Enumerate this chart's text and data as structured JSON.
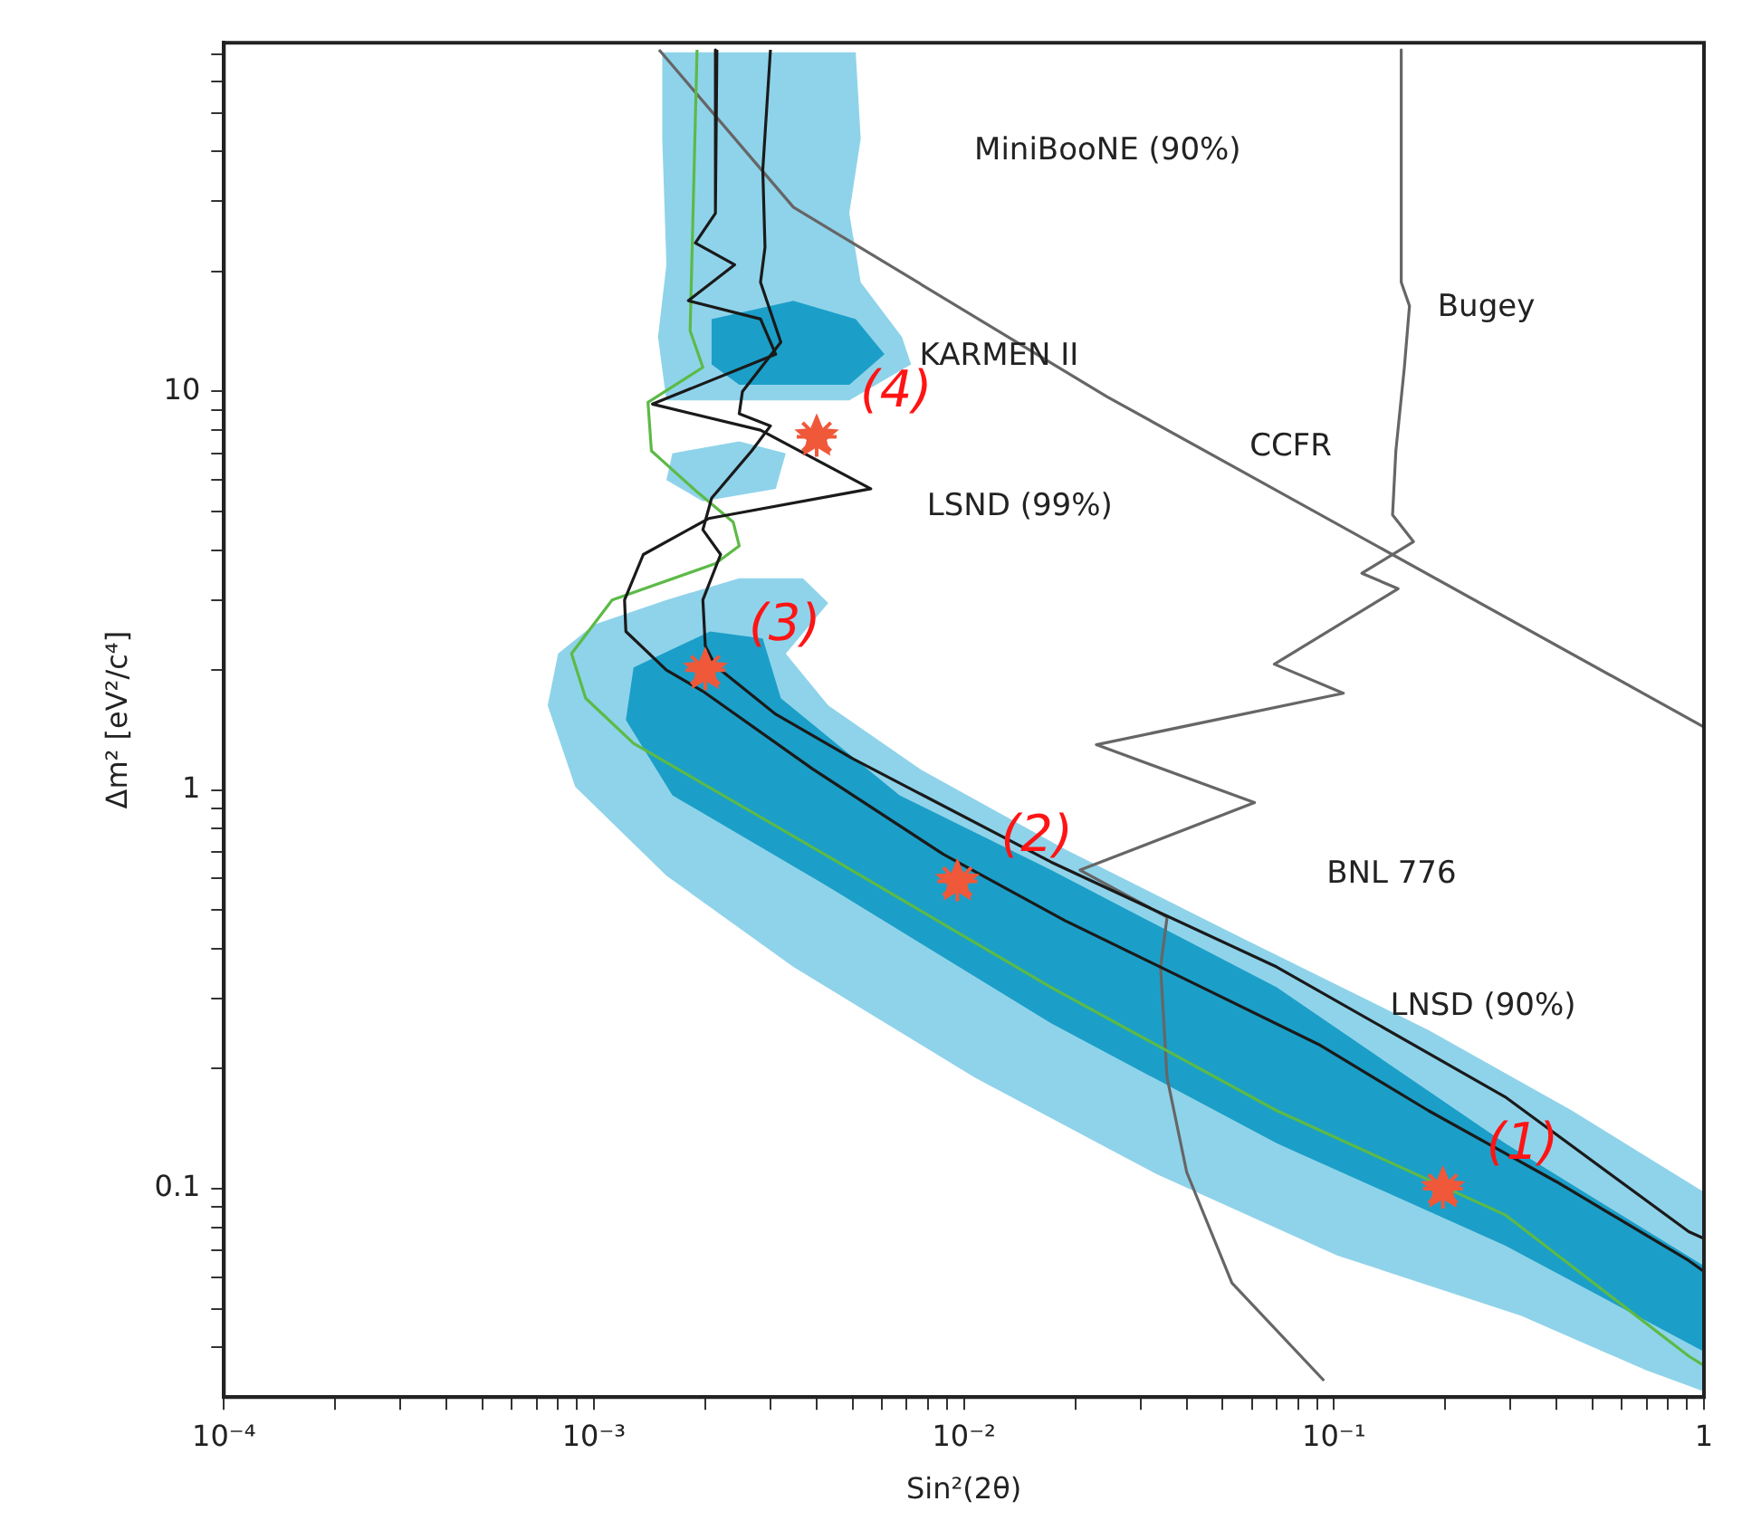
{
  "chart_data": {
    "type": "line",
    "xlabel": "Sin²(2θ)",
    "ylabel": "Δm² [eV²/c⁴]",
    "log": "xy",
    "grid": false,
    "legend": false,
    "xlim": [
      0.0001,
      1
    ],
    "ylim": [
      0.03,
      75
    ],
    "xticks": [
      {
        "value": 0.0001,
        "label": "10⁻⁴"
      },
      {
        "value": 0.0002,
        "label": null
      },
      {
        "value": 0.0003,
        "label": null
      },
      {
        "value": 0.0004,
        "label": null
      },
      {
        "value": 0.0005,
        "label": null
      },
      {
        "value": 0.0006,
        "label": null
      },
      {
        "value": 0.0007,
        "label": null
      },
      {
        "value": 0.0008,
        "label": null
      },
      {
        "value": 0.0009,
        "label": null
      },
      {
        "value": 0.001,
        "label": "10⁻³"
      },
      {
        "value": 0.002,
        "label": null
      },
      {
        "value": 0.003,
        "label": null
      },
      {
        "value": 0.004,
        "label": null
      },
      {
        "value": 0.005,
        "label": null
      },
      {
        "value": 0.006,
        "label": null
      },
      {
        "value": 0.007,
        "label": null
      },
      {
        "value": 0.008,
        "label": null
      },
      {
        "value": 0.009,
        "label": null
      },
      {
        "value": 0.01,
        "label": "10⁻²"
      },
      {
        "value": 0.02,
        "label": null
      },
      {
        "value": 0.03,
        "label": null
      },
      {
        "value": 0.04,
        "label": null
      },
      {
        "value": 0.05,
        "label": null
      },
      {
        "value": 0.06,
        "label": null
      },
      {
        "value": 0.07,
        "label": null
      },
      {
        "value": 0.08,
        "label": null
      },
      {
        "value": 0.09,
        "label": null
      },
      {
        "value": 0.1,
        "label": "10⁻¹"
      },
      {
        "value": 0.2,
        "label": null
      },
      {
        "value": 0.3,
        "label": null
      },
      {
        "value": 0.4,
        "label": null
      },
      {
        "value": 0.5,
        "label": null
      },
      {
        "value": 0.6,
        "label": null
      },
      {
        "value": 0.7,
        "label": null
      },
      {
        "value": 0.8,
        "label": null
      },
      {
        "value": 0.9,
        "label": null
      },
      1
    ],
    "yticks": [
      {
        "value": 0.04,
        "label": null
      },
      {
        "value": 0.05,
        "label": null
      },
      {
        "value": 0.06,
        "label": null
      },
      {
        "value": 0.07,
        "label": null
      },
      {
        "value": 0.08,
        "label": null
      },
      {
        "value": 0.09,
        "label": null
      },
      0.1,
      {
        "value": 0.2,
        "label": null
      },
      {
        "value": 0.3,
        "label": null
      },
      {
        "value": 0.4,
        "label": null
      },
      {
        "value": 0.5,
        "label": null
      },
      {
        "value": 0.6,
        "label": null
      },
      {
        "value": 0.7,
        "label": null
      },
      {
        "value": 0.8,
        "label": null
      },
      {
        "value": 0.9,
        "label": null
      },
      1,
      {
        "value": 2,
        "label": null
      },
      {
        "value": 3,
        "label": null
      },
      {
        "value": 4,
        "label": null
      },
      {
        "value": 5,
        "label": null
      },
      {
        "value": 6,
        "label": null
      },
      {
        "value": 7,
        "label": null
      },
      {
        "value": 8,
        "label": null
      },
      {
        "value": 9,
        "label": null
      },
      10,
      {
        "value": 20,
        "label": null
      },
      {
        "value": 30,
        "label": null
      },
      {
        "value": 40,
        "label": null
      },
      {
        "value": 50,
        "label": null
      },
      {
        "value": 60,
        "label": null
      },
      {
        "value": 70,
        "label": null
      }
    ],
    "series": [
      {
        "type": "area",
        "color": "#8fd3ea",
        "x": [
          0.00153,
          0.0051,
          0.00526,
          0.0049,
          0.00526,
          0.0068,
          0.0072,
          0.0049,
          0.00157,
          0.00149,
          0.00157,
          0.00153
        ],
        "values": [
          71,
          71,
          43,
          28,
          18.8,
          13.7,
          11.7,
          9.5,
          9.5,
          13.7,
          20.8,
          43
        ]
      },
      {
        "type": "area",
        "color": "#8fd3ea",
        "x": [
          0.00163,
          0.00247,
          0.0033,
          0.0031,
          0.00197,
          0.00157
        ],
        "values": [
          7.0,
          7.5,
          7.0,
          5.7,
          5.3,
          6.0
        ]
      },
      {
        "type": "area",
        "color": "#8fd3ea",
        "x": [
          0.00247,
          0.00367,
          0.0043,
          0.0033,
          0.0043,
          0.0076,
          0.0188,
          0.058,
          0.18,
          0.44,
          1,
          1,
          0.7,
          0.32,
          0.102,
          0.033,
          0.0107,
          0.00346,
          0.00157,
          0.00089,
          0.00075,
          0.0008,
          0.001,
          0.00157
        ],
        "values": [
          3.4,
          3.4,
          2.95,
          2.2,
          1.63,
          1.13,
          0.71,
          0.42,
          0.25,
          0.157,
          0.098,
          0.031,
          0.035,
          0.048,
          0.068,
          0.109,
          0.19,
          0.36,
          0.61,
          1.02,
          1.63,
          2.2,
          2.6,
          3.0
        ]
      },
      {
        "type": "area",
        "color": "#1b9fc8",
        "x": [
          0.00208,
          0.00346,
          0.0051,
          0.0061,
          0.0049,
          0.00247,
          0.00208
        ],
        "values": [
          15.2,
          16.9,
          15.2,
          12.4,
          10.4,
          10.4,
          11.7
        ]
      },
      {
        "type": "area",
        "color": "#1b9fc8",
        "x": [
          0.00128,
          0.00206,
          0.00286,
          0.0032,
          0.0067,
          0.0172,
          0.07,
          0.29,
          1,
          1,
          0.29,
          0.07,
          0.0172,
          0.0042,
          0.00163,
          0.00122
        ],
        "values": [
          2.03,
          2.5,
          2.4,
          1.7,
          0.97,
          0.63,
          0.32,
          0.13,
          0.064,
          0.039,
          0.072,
          0.13,
          0.26,
          0.58,
          0.97,
          1.5
        ]
      },
      {
        "type": "line",
        "color": "#666666",
        "x": [
          0.0015,
          0.00346,
          0.0244,
          1
        ],
        "values": [
          72,
          29,
          9.7,
          1.44
        ]
      },
      {
        "type": "line",
        "color": "#666666",
        "x": [
          0.152,
          0.152,
          0.16,
          0.155,
          0.147,
          0.144,
          0.164,
          0.119,
          0.149,
          0.069,
          0.106,
          0.0228,
          0.061,
          0.0206,
          0.0354,
          0.034,
          0.0354,
          0.04,
          0.053,
          0.094
        ],
        "values": [
          72,
          18.8,
          16.4,
          11.5,
          7.1,
          4.9,
          4.2,
          3.5,
          3.2,
          2.07,
          1.75,
          1.3,
          0.93,
          0.63,
          0.48,
          0.36,
          0.19,
          0.11,
          0.058,
          0.033
        ]
      },
      {
        "type": "line",
        "color": "#5cba47",
        "x": [
          0.0019,
          0.00182,
          0.00197,
          0.0014,
          0.00143,
          0.0019,
          0.00238,
          0.00247,
          0.00213,
          0.00112,
          0.00087,
          0.00095,
          0.00128,
          0.0042,
          0.0172,
          0.07,
          0.29,
          0.91,
          1
        ],
        "values": [
          72,
          14.2,
          11.5,
          9.4,
          7.1,
          5.6,
          4.7,
          4.1,
          3.7,
          3.0,
          2.2,
          1.7,
          1.31,
          0.69,
          0.32,
          0.157,
          0.086,
          0.038,
          0.036
        ]
      },
      {
        "type": "line",
        "color": "#1a1a1a",
        "x": [
          0.00215,
          0.00213,
          0.00188,
          0.0024,
          0.0018,
          0.00282,
          0.0031,
          0.00144,
          0.00282,
          0.0056,
          0.00204,
          0.00136,
          0.00121,
          0.00122,
          0.00157,
          0.00197,
          0.0039,
          0.0088,
          0.0188,
          0.044,
          0.091,
          0.18,
          0.4,
          0.91,
          1
        ],
        "values": [
          72,
          28,
          23.6,
          20.8,
          16.9,
          15.2,
          12.4,
          9.3,
          8.0,
          5.7,
          4.8,
          3.9,
          3.0,
          2.5,
          2.0,
          1.77,
          1.13,
          0.69,
          0.47,
          0.32,
          0.23,
          0.157,
          0.104,
          0.066,
          0.062
        ]
      },
      {
        "type": "line",
        "color": "#1a1a1a",
        "x": [
          0.003,
          0.00286,
          0.0029,
          0.00282,
          0.0032,
          0.00252,
          0.00247,
          0.003,
          0.00267,
          0.00208,
          0.00197,
          0.0022,
          0.00197,
          0.002,
          0.00213,
          0.0031,
          0.005,
          0.0172,
          0.07,
          0.29,
          0.91,
          1
        ],
        "values": [
          72,
          36,
          23,
          18.8,
          13.3,
          10,
          8.8,
          8.2,
          7.1,
          5.4,
          4.5,
          3.9,
          3.0,
          2.3,
          2.05,
          1.55,
          1.2,
          0.66,
          0.36,
          0.17,
          0.078,
          0.075
        ]
      },
      {
        "type": "scatter",
        "color": "#f0583a",
        "x": [
          0.197,
          0.0096,
          0.002,
          0.004
        ],
        "values": [
          0.1,
          0.59,
          2.0,
          7.7
        ]
      }
    ],
    "annotations": [
      "MiniBooNE (90%)",
      "KARMEN II",
      "LSND (99%)",
      "Bugey",
      "CCFR",
      "BNL 776",
      "LNSD (90%)",
      {
        "text": "(1)",
        "x": 0.197,
        "y": 0.1
      },
      {
        "text": "(2)",
        "x": 0.0096,
        "y": 0.59
      },
      {
        "text": "(3)",
        "x": 0.002,
        "y": 2.0
      },
      {
        "text": "(4)",
        "x": 0.004,
        "y": 7.7
      }
    ]
  }
}
